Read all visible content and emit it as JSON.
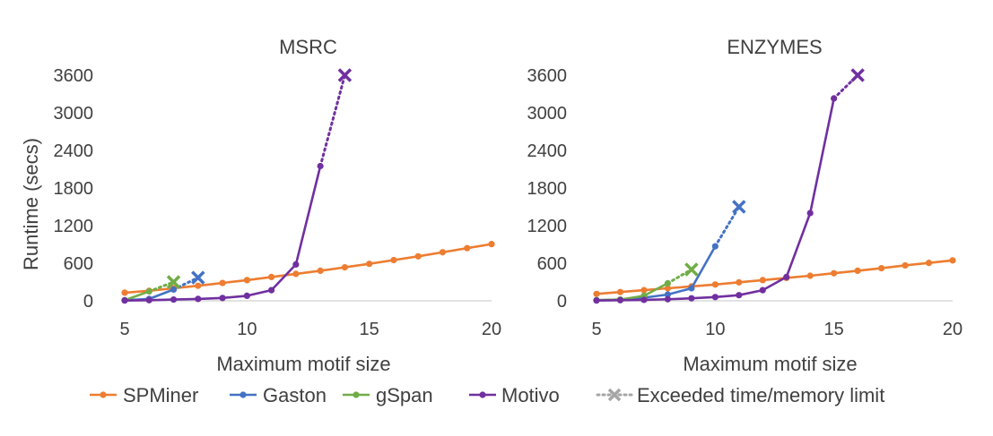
{
  "colors": {
    "SPMiner": "#ED7D31",
    "Gaston": "#4472C4",
    "gSpan": "#70AD47",
    "Motivo": "#7030A0",
    "limit_marker": "#A6A6A6",
    "axis": "#D9D9D9",
    "text": "#404040"
  },
  "chart_data": [
    {
      "type": "line",
      "title": "MSRC",
      "xlabel": "Maximum motif size",
      "ylabel": "Runtime (secs)",
      "xlim": [
        5,
        20
      ],
      "ylim": [
        0,
        3600
      ],
      "xticks": [
        5,
        10,
        15,
        20
      ],
      "yticks": [
        0,
        600,
        1200,
        1800,
        2400,
        3000,
        3600
      ],
      "grid": false,
      "series": [
        {
          "name": "SPMiner",
          "color_key": "SPMiner",
          "x": [
            5,
            6,
            7,
            8,
            9,
            10,
            11,
            12,
            13,
            14,
            15,
            16,
            17,
            18,
            19,
            20
          ],
          "y": [
            130,
            160,
            200,
            240,
            285,
            330,
            380,
            430,
            480,
            535,
            590,
            650,
            710,
            775,
            840,
            905
          ],
          "limit": null
        },
        {
          "name": "Gaston",
          "color_key": "Gaston",
          "x": [
            5,
            6,
            7,
            8
          ],
          "y": [
            10,
            30,
            180,
            370
          ],
          "limit": {
            "from": 7,
            "to": 8,
            "y_from": 180,
            "y_to": 370
          }
        },
        {
          "name": "gSpan",
          "color_key": "gSpan",
          "x": [
            5,
            6,
            7
          ],
          "y": [
            10,
            150,
            300
          ],
          "limit": {
            "from": 6,
            "to": 7,
            "y_from": 150,
            "y_to": 300
          }
        },
        {
          "name": "Motivo",
          "color_key": "Motivo",
          "x": [
            5,
            6,
            7,
            8,
            9,
            10,
            11,
            12,
            13,
            14
          ],
          "y": [
            5,
            10,
            20,
            30,
            45,
            80,
            170,
            580,
            2150,
            3600
          ],
          "limit": {
            "from": 13,
            "to": 14,
            "y_from": 2150,
            "y_to": 3600
          }
        }
      ]
    },
    {
      "type": "line",
      "title": "ENZYMES",
      "xlabel": "Maximum motif size",
      "ylabel": "",
      "xlim": [
        5,
        20
      ],
      "ylim": [
        0,
        3600
      ],
      "xticks": [
        5,
        10,
        15,
        20
      ],
      "yticks": [
        0,
        600,
        1200,
        1800,
        2400,
        3000,
        3600
      ],
      "grid": false,
      "series": [
        {
          "name": "SPMiner",
          "color_key": "SPMiner",
          "x": [
            5,
            6,
            7,
            8,
            9,
            10,
            11,
            12,
            13,
            14,
            15,
            16,
            17,
            18,
            19,
            20
          ],
          "y": [
            110,
            140,
            170,
            200,
            230,
            260,
            295,
            330,
            365,
            400,
            440,
            480,
            520,
            565,
            605,
            645
          ],
          "limit": null
        },
        {
          "name": "Gaston",
          "color_key": "Gaston",
          "x": [
            5,
            6,
            7,
            8,
            9,
            10,
            11
          ],
          "y": [
            10,
            20,
            50,
            100,
            200,
            870,
            1500
          ],
          "limit": {
            "from": 10,
            "to": 11,
            "y_from": 870,
            "y_to": 1500
          }
        },
        {
          "name": "gSpan",
          "color_key": "gSpan",
          "x": [
            5,
            6,
            7,
            8,
            9
          ],
          "y": [
            10,
            20,
            80,
            280,
            500
          ],
          "limit": {
            "from": 8,
            "to": 9,
            "y_from": 280,
            "y_to": 500
          }
        },
        {
          "name": "Motivo",
          "color_key": "Motivo",
          "x": [
            5,
            6,
            7,
            8,
            9,
            10,
            11,
            12,
            13,
            14,
            15,
            16
          ],
          "y": [
            5,
            10,
            15,
            25,
            40,
            60,
            90,
            170,
            380,
            1400,
            3230,
            3600
          ],
          "limit": {
            "from": 15,
            "to": 16,
            "y_from": 3230,
            "y_to": 3600
          }
        }
      ]
    }
  ],
  "legend": {
    "placement": "bottom",
    "items": [
      {
        "label": "SPMiner",
        "color_key": "SPMiner",
        "style": "solid"
      },
      {
        "label": "Gaston",
        "color_key": "Gaston",
        "style": "solid"
      },
      {
        "label": "gSpan",
        "color_key": "gSpan",
        "style": "solid"
      },
      {
        "label": "Motivo",
        "color_key": "Motivo",
        "style": "solid"
      },
      {
        "label": "Exceeded time/memory limit",
        "color_key": "limit_marker",
        "style": "dotted-x"
      }
    ]
  }
}
